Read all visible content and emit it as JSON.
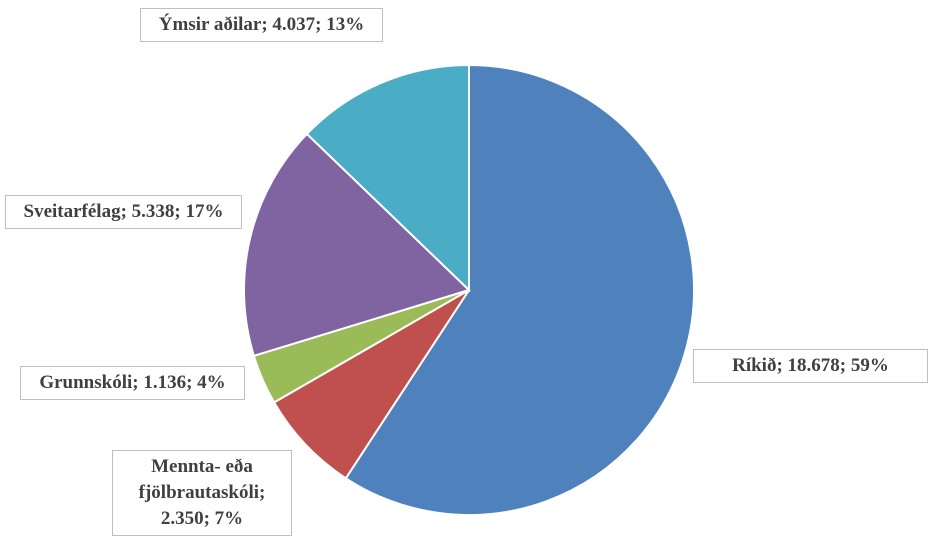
{
  "chart_data": {
    "type": "pie",
    "categories": [
      "Ríkið",
      "Mennta- eða fjölbrautaskóli",
      "Grunnskóli",
      "Sveitarfélag",
      "Ýmsir aðilar"
    ],
    "values": [
      18678,
      2350,
      1136,
      5338,
      4037
    ],
    "value_labels": [
      "18.678",
      "2.350",
      "1.136",
      "5.338",
      "4.037"
    ],
    "percents": [
      59,
      7,
      4,
      17,
      13
    ],
    "percent_labels": [
      "59%",
      "7%",
      "4%",
      "17%",
      "13%"
    ],
    "label_separator": "; ",
    "colors": [
      "#4f81bd",
      "#c0504d",
      "#9bbb59",
      "#8064a2",
      "#4bacc6"
    ]
  }
}
